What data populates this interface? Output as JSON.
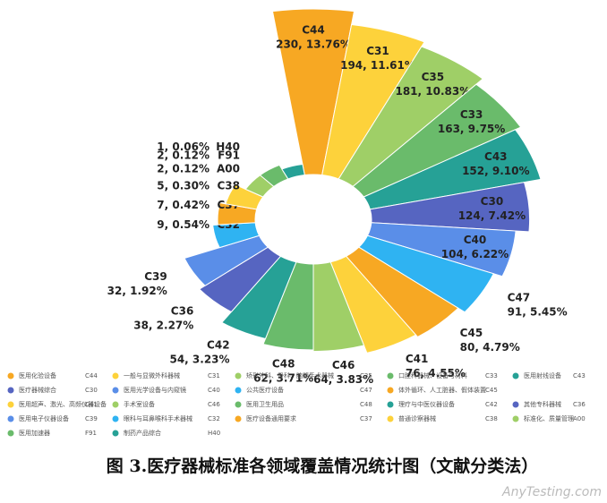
{
  "chart_data": {
    "type": "rose",
    "categories": [
      "C44",
      "C31",
      "C35",
      "C33",
      "C43",
      "C30",
      "C40",
      "C47",
      "C45",
      "C41",
      "C46",
      "C48",
      "C42",
      "C36",
      "C39",
      "C32",
      "C37",
      "C38",
      "A00",
      "F91",
      "H40"
    ],
    "names": [
      "医用化验设备",
      "一般与显微外科器械",
      "矫形外科、骨科、脑髓手术器械",
      "口腔科器械、设备与材料",
      "医用射线设备",
      "医疗器械综合",
      "医用光学设备与内窥镜",
      "公共医疗设备",
      "体外循环、人工脏器、假体装置",
      "医用超声、激光、高频仪器设备",
      "手术室设备",
      "医用卫生用品",
      "理疗与中医仪器设备",
      "其他专科器械",
      "医用电子仪器设备",
      "眼科与耳鼻喉科手术器械",
      "医疗设备通用要求",
      "普通诊察器械",
      "标准化、质量管理",
      "医用加速器",
      "制药产品综合"
    ],
    "values": [
      230,
      194,
      181,
      163,
      152,
      124,
      104,
      91,
      80,
      76,
      64,
      62,
      54,
      38,
      32,
      9,
      7,
      5,
      2,
      2,
      1
    ],
    "value_labels": [
      "230, 13.76%",
      "194, 11.61%",
      "181, 10.83%",
      "163, 9.75%",
      "152, 9.10%",
      "124, 7.42%",
      "104, 6.22%",
      "91, 5.45%",
      "80, 4.79%",
      "76, 4.55%",
      "64, 3.83%",
      "62, 3.71%",
      "54, 3.23%",
      "38, 2.27%",
      "32, 1.92%",
      "9, 0.54%",
      "7, 0.42%",
      "5, 0.30%",
      "2, 0.12%",
      "2, 0.12%",
      "1, 0.06%"
    ],
    "colors": [
      "#f7a823",
      "#fdd23b",
      "#9fcf67",
      "#6abb6b",
      "#26a196",
      "#5665c1",
      "#5a8ee8",
      "#2fb3f2",
      "#f7a823",
      "#fdd23b",
      "#9fcf67",
      "#6abb6b",
      "#26a196",
      "#5665c1",
      "#5a8ee8",
      "#2fb3f2",
      "#f7a823",
      "#fdd23b",
      "#9fcf67",
      "#6abb6b",
      "#26a196"
    ],
    "caption": "图 3.医疗器械标准各领域覆盖情况统计图（文献分类法）",
    "watermark": "AnyTesting.com"
  }
}
